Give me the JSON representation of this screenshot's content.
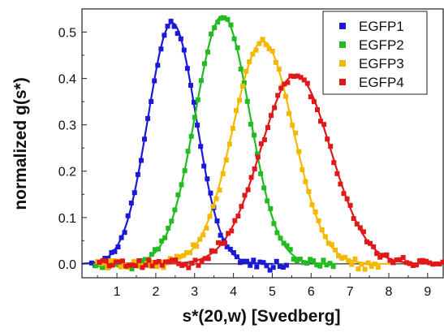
{
  "chart_data": {
    "type": "scatter",
    "xlabel": "s*(20,w) [Svedberg]",
    "ylabel": "normalized g(s*)",
    "xlim": [
      0.1,
      9.4
    ],
    "ylim": [
      -0.03,
      0.55
    ],
    "x_ticks": [
      "1",
      "2",
      "3",
      "4",
      "5",
      "6",
      "7",
      "8",
      "9"
    ],
    "y_ticks": [
      "0.0",
      "0.1",
      "0.2",
      "0.3",
      "0.4",
      "0.5"
    ],
    "legend_position": "top-right",
    "fit_curves": "solid lines through each series",
    "baseline": 0.0,
    "series": [
      {
        "name": "EGFP1",
        "color": "#1a1ad6",
        "model": "gaussian",
        "peak_x": 2.42,
        "peak_y": 0.52,
        "width": 0.62,
        "x_range": [
          0.35,
          5.4
        ]
      },
      {
        "name": "EGFP2",
        "color": "#22bb22",
        "model": "gaussian",
        "peak_x": 3.72,
        "peak_y": 0.535,
        "width": 0.7,
        "x_range": [
          0.45,
          6.6
        ]
      },
      {
        "name": "EGFP3",
        "color": "#f5b800",
        "model": "gaussian",
        "peak_x": 4.76,
        "peak_y": 0.48,
        "width": 0.78,
        "x_range": [
          0.5,
          7.8
        ]
      },
      {
        "name": "EGFP4",
        "color": "#e01818",
        "model": "gaussian",
        "peak_x": 5.6,
        "peak_y": 0.408,
        "width": 0.9,
        "x_range": [
          0.55,
          9.4
        ]
      }
    ]
  }
}
